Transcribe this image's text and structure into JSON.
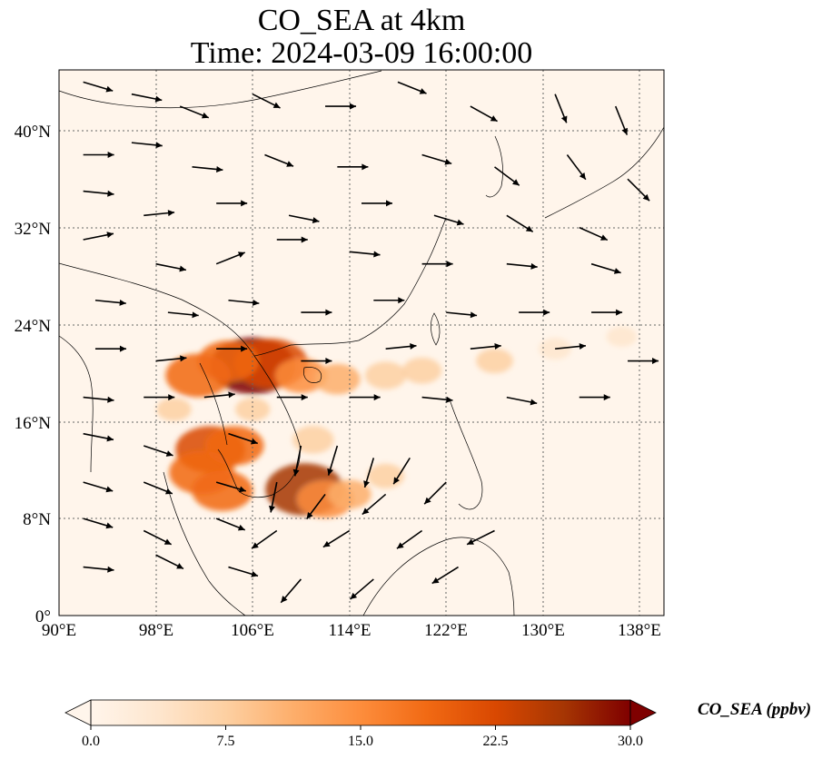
{
  "title": {
    "line1": "CO_SEA at 4km",
    "line2": "Time: 2024-03-09 16:00:00"
  },
  "map": {
    "lon_range": [
      90,
      140
    ],
    "lat_range": [
      0,
      45
    ],
    "x_ticks": [
      "90°E",
      "98°E",
      "106°E",
      "114°E",
      "122°E",
      "130°E",
      "138°E"
    ],
    "y_ticks": [
      "0°",
      "8°N",
      "16°N",
      "24°N",
      "32°N",
      "40°N"
    ],
    "gridlines": "dotted"
  },
  "colorbar": {
    "label": "CO_SEA (ppbv)",
    "range": [
      0.0,
      30.0
    ],
    "ticks": [
      "0.0",
      "7.5",
      "15.0",
      "22.5",
      "30.0"
    ],
    "colors": [
      "#fff5eb",
      "#fee6ce",
      "#fdd0a2",
      "#fdae6b",
      "#fd8d3c",
      "#f16913",
      "#d94801",
      "#a63603",
      "#7f0000"
    ],
    "extend": "both"
  },
  "plumes": [
    {
      "lon": 106.0,
      "lat": 20.6,
      "value": 29
    },
    {
      "lon": 107.5,
      "lat": 20.8,
      "value": 24
    },
    {
      "lon": 104.0,
      "lat": 21.0,
      "value": 18
    },
    {
      "lon": 101.5,
      "lat": 19.8,
      "value": 20
    },
    {
      "lon": 110.0,
      "lat": 19.8,
      "value": 14
    },
    {
      "lon": 113.0,
      "lat": 19.5,
      "value": 11
    },
    {
      "lon": 117.0,
      "lat": 19.8,
      "value": 9
    },
    {
      "lon": 120.0,
      "lat": 20.2,
      "value": 8
    },
    {
      "lon": 126.0,
      "lat": 21.0,
      "value": 7
    },
    {
      "lon": 131.0,
      "lat": 22.0,
      "value": 5
    },
    {
      "lon": 136.5,
      "lat": 23.0,
      "value": 4
    },
    {
      "lon": 102.5,
      "lat": 13.7,
      "value": 22
    },
    {
      "lon": 104.5,
      "lat": 14.0,
      "value": 17
    },
    {
      "lon": 101.8,
      "lat": 11.8,
      "value": 20
    },
    {
      "lon": 103.5,
      "lat": 10.3,
      "value": 18
    },
    {
      "lon": 110.3,
      "lat": 10.4,
      "value": 26
    },
    {
      "lon": 112.0,
      "lat": 9.6,
      "value": 16
    },
    {
      "lon": 114.0,
      "lat": 10.0,
      "value": 10
    },
    {
      "lon": 117.0,
      "lat": 11.5,
      "value": 7
    },
    {
      "lon": 111.0,
      "lat": 14.5,
      "value": 9
    },
    {
      "lon": 99.5,
      "lat": 17.0,
      "value": 6
    },
    {
      "lon": 106.0,
      "lat": 17.0,
      "value": 6
    }
  ],
  "wind_arrows": [
    {
      "lon": 92,
      "lat": 44,
      "u": 1.0,
      "v": -0.3
    },
    {
      "lon": 96,
      "lat": 43,
      "u": 1.0,
      "v": -0.2
    },
    {
      "lon": 100,
      "lat": 42,
      "u": 1.0,
      "v": -0.4
    },
    {
      "lon": 106,
      "lat": 43,
      "u": 1.0,
      "v": -0.5
    },
    {
      "lon": 112,
      "lat": 42,
      "u": 1.0,
      "v": 0.0
    },
    {
      "lon": 118,
      "lat": 44,
      "u": 1.0,
      "v": -0.4
    },
    {
      "lon": 124,
      "lat": 42,
      "u": 0.9,
      "v": -0.5
    },
    {
      "lon": 131,
      "lat": 43,
      "u": 0.4,
      "v": -1.0
    },
    {
      "lon": 136,
      "lat": 42,
      "u": 0.4,
      "v": -1.0
    },
    {
      "lon": 92,
      "lat": 38,
      "u": 1.0,
      "v": 0.0
    },
    {
      "lon": 96,
      "lat": 39,
      "u": 1.0,
      "v": -0.1
    },
    {
      "lon": 101,
      "lat": 37,
      "u": 1.0,
      "v": -0.1
    },
    {
      "lon": 107,
      "lat": 38,
      "u": 1.0,
      "v": -0.4
    },
    {
      "lon": 113,
      "lat": 37,
      "u": 1.0,
      "v": 0.0
    },
    {
      "lon": 120,
      "lat": 38,
      "u": 1.0,
      "v": -0.3
    },
    {
      "lon": 126,
      "lat": 37,
      "u": 0.8,
      "v": -0.6
    },
    {
      "lon": 132,
      "lat": 38,
      "u": 0.6,
      "v": -0.8
    },
    {
      "lon": 137,
      "lat": 36,
      "u": 0.7,
      "v": -0.7
    },
    {
      "lon": 92,
      "lat": 35,
      "u": 1.0,
      "v": -0.1
    },
    {
      "lon": 97,
      "lat": 33,
      "u": 1.0,
      "v": 0.1
    },
    {
      "lon": 103,
      "lat": 34,
      "u": 1.0,
      "v": 0.0
    },
    {
      "lon": 109,
      "lat": 33,
      "u": 1.0,
      "v": -0.2
    },
    {
      "lon": 115,
      "lat": 34,
      "u": 1.0,
      "v": 0.0
    },
    {
      "lon": 121,
      "lat": 33,
      "u": 1.0,
      "v": -0.3
    },
    {
      "lon": 127,
      "lat": 33,
      "u": 0.8,
      "v": -0.5
    },
    {
      "lon": 133,
      "lat": 32,
      "u": 0.9,
      "v": -0.4
    },
    {
      "lon": 92,
      "lat": 31,
      "u": 1.0,
      "v": 0.2
    },
    {
      "lon": 98,
      "lat": 29,
      "u": 1.0,
      "v": -0.2
    },
    {
      "lon": 103,
      "lat": 29,
      "u": 1.0,
      "v": 0.4
    },
    {
      "lon": 108,
      "lat": 31,
      "u": 1.0,
      "v": 0.0
    },
    {
      "lon": 114,
      "lat": 30,
      "u": 1.0,
      "v": -0.1
    },
    {
      "lon": 120,
      "lat": 29,
      "u": 1.0,
      "v": 0.0
    },
    {
      "lon": 127,
      "lat": 29,
      "u": 1.0,
      "v": -0.1
    },
    {
      "lon": 134,
      "lat": 29,
      "u": 1.0,
      "v": -0.3
    },
    {
      "lon": 93,
      "lat": 26,
      "u": 1.0,
      "v": -0.1
    },
    {
      "lon": 99,
      "lat": 25,
      "u": 1.0,
      "v": -0.1
    },
    {
      "lon": 104,
      "lat": 26,
      "u": 1.0,
      "v": -0.1
    },
    {
      "lon": 110,
      "lat": 25,
      "u": 1.0,
      "v": 0.0
    },
    {
      "lon": 116,
      "lat": 26,
      "u": 1.0,
      "v": 0.0
    },
    {
      "lon": 122,
      "lat": 25,
      "u": 1.0,
      "v": -0.1
    },
    {
      "lon": 128,
      "lat": 25,
      "u": 1.0,
      "v": 0.0
    },
    {
      "lon": 134,
      "lat": 25,
      "u": 1.0,
      "v": 0.0
    },
    {
      "lon": 93,
      "lat": 22,
      "u": 1.0,
      "v": 0.0
    },
    {
      "lon": 98,
      "lat": 21,
      "u": 1.0,
      "v": 0.1
    },
    {
      "lon": 103,
      "lat": 22,
      "u": 1.0,
      "v": 0.0
    },
    {
      "lon": 110,
      "lat": 21,
      "u": 1.0,
      "v": 0.0
    },
    {
      "lon": 117,
      "lat": 22,
      "u": 1.0,
      "v": 0.1
    },
    {
      "lon": 124,
      "lat": 22,
      "u": 1.0,
      "v": 0.1
    },
    {
      "lon": 131,
      "lat": 22,
      "u": 1.0,
      "v": 0.1
    },
    {
      "lon": 137,
      "lat": 21,
      "u": 1.0,
      "v": 0.0
    },
    {
      "lon": 92,
      "lat": 18,
      "u": 1.0,
      "v": -0.1
    },
    {
      "lon": 97,
      "lat": 18,
      "u": 1.0,
      "v": 0.0
    },
    {
      "lon": 102,
      "lat": 18,
      "u": 1.0,
      "v": 0.1
    },
    {
      "lon": 108,
      "lat": 18,
      "u": 1.0,
      "v": 0.0
    },
    {
      "lon": 114,
      "lat": 18,
      "u": 1.0,
      "v": 0.0
    },
    {
      "lon": 120,
      "lat": 18,
      "u": 1.0,
      "v": -0.1
    },
    {
      "lon": 127,
      "lat": 18,
      "u": 1.0,
      "v": -0.2
    },
    {
      "lon": 133,
      "lat": 18,
      "u": 1.0,
      "v": 0.0
    },
    {
      "lon": 92,
      "lat": 15,
      "u": 1.0,
      "v": -0.2
    },
    {
      "lon": 97,
      "lat": 14,
      "u": 0.9,
      "v": -0.3
    },
    {
      "lon": 104,
      "lat": 15,
      "u": 0.9,
      "v": -0.3
    },
    {
      "lon": 110,
      "lat": 14,
      "u": -0.2,
      "v": -1.0
    },
    {
      "lon": 113,
      "lat": 14,
      "u": -0.3,
      "v": -1.0
    },
    {
      "lon": 116,
      "lat": 13,
      "u": -0.3,
      "v": -1.0
    },
    {
      "lon": 119,
      "lat": 13,
      "u": -0.5,
      "v": -0.8
    },
    {
      "lon": 92,
      "lat": 11,
      "u": 1.0,
      "v": -0.3
    },
    {
      "lon": 97,
      "lat": 11,
      "u": 1.0,
      "v": -0.4
    },
    {
      "lon": 103,
      "lat": 11,
      "u": 1.0,
      "v": -0.3
    },
    {
      "lon": 108,
      "lat": 11,
      "u": -0.2,
      "v": -1.0
    },
    {
      "lon": 112,
      "lat": 10,
      "u": -0.6,
      "v": -0.8
    },
    {
      "lon": 117,
      "lat": 10,
      "u": -0.7,
      "v": -0.6
    },
    {
      "lon": 122,
      "lat": 11,
      "u": -0.6,
      "v": -0.6
    },
    {
      "lon": 92,
      "lat": 8,
      "u": 1.0,
      "v": -0.3
    },
    {
      "lon": 97,
      "lat": 7,
      "u": 1.0,
      "v": -0.5
    },
    {
      "lon": 103,
      "lat": 8,
      "u": 1.0,
      "v": -0.4
    },
    {
      "lon": 108,
      "lat": 7,
      "u": -0.7,
      "v": -0.5
    },
    {
      "lon": 114,
      "lat": 7,
      "u": -0.8,
      "v": -0.5
    },
    {
      "lon": 120,
      "lat": 7,
      "u": -0.7,
      "v": -0.5
    },
    {
      "lon": 126,
      "lat": 7,
      "u": -0.8,
      "v": -0.4
    },
    {
      "lon": 92,
      "lat": 4,
      "u": 1.0,
      "v": -0.1
    },
    {
      "lon": 98,
      "lat": 5,
      "u": 1.0,
      "v": -0.5
    },
    {
      "lon": 104,
      "lat": 4,
      "u": 1.0,
      "v": -0.3
    },
    {
      "lon": 110,
      "lat": 3,
      "u": -0.6,
      "v": -0.7
    },
    {
      "lon": 116,
      "lat": 3,
      "u": -0.7,
      "v": -0.6
    },
    {
      "lon": 123,
      "lat": 4,
      "u": -0.8,
      "v": -0.5
    }
  ]
}
